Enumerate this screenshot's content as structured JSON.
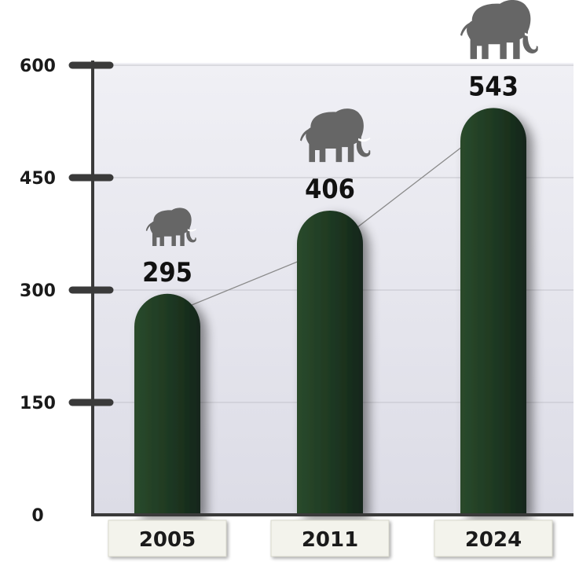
{
  "chart_data": {
    "type": "bar",
    "categories": [
      "2005",
      "2011",
      "2024"
    ],
    "values": [
      295,
      406,
      543
    ],
    "value_labels": [
      "295",
      "406",
      "543"
    ],
    "yticks": [
      "0",
      "150",
      "300",
      "450",
      "600"
    ],
    "ylim": [
      0,
      600
    ],
    "grid": true,
    "legend": "none",
    "trend_line": true,
    "icon": "elephant-icon",
    "colors": {
      "bar": "#1f3a22",
      "bar_dark": "#14261a",
      "axis": "#3a3a3a",
      "plot_bg": "#e6e6ee",
      "icon": "#666666",
      "label_box": "#f3f3ec"
    }
  }
}
